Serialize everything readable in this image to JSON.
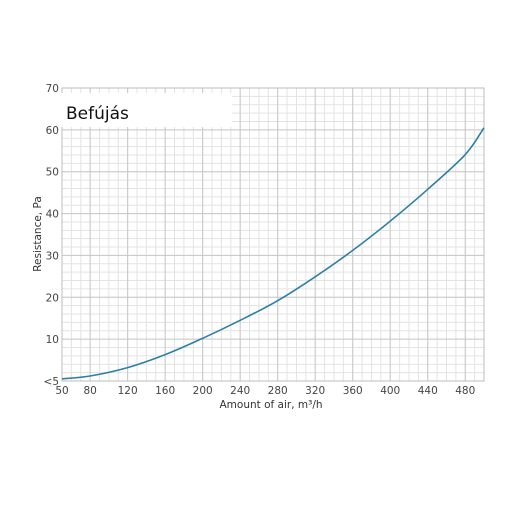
{
  "chart_data": {
    "type": "line",
    "title": "Befújás",
    "xlabel": "Amount of air, m³/h",
    "ylabel": "Resistance, Pa",
    "xlim": [
      50,
      500
    ],
    "ylim": [
      0,
      70
    ],
    "x_ticks": [
      50,
      80,
      120,
      160,
      200,
      240,
      280,
      320,
      360,
      400,
      440,
      480
    ],
    "x_tick_labels": [
      "50",
      "80",
      "120",
      "160",
      "200",
      "240",
      "280",
      "320",
      "360",
      "400",
      "440",
      "480"
    ],
    "y_ticks": [
      0,
      10,
      20,
      30,
      40,
      50,
      60,
      70
    ],
    "y_tick_labels": [
      "<5",
      "10",
      "20",
      "30",
      "40",
      "50",
      "60",
      "70"
    ],
    "grid": true,
    "line_color": "#2e7fa6",
    "series": [
      {
        "x": [
          50,
          80,
          120,
          160,
          200,
          240,
          280,
          320,
          360,
          400,
          440,
          480,
          500
        ],
        "values": [
          0.5,
          1.2,
          3.2,
          6.3,
          10.2,
          14.5,
          19.2,
          24.9,
          31.2,
          38.2,
          45.8,
          54.1,
          60.5
        ]
      }
    ]
  }
}
